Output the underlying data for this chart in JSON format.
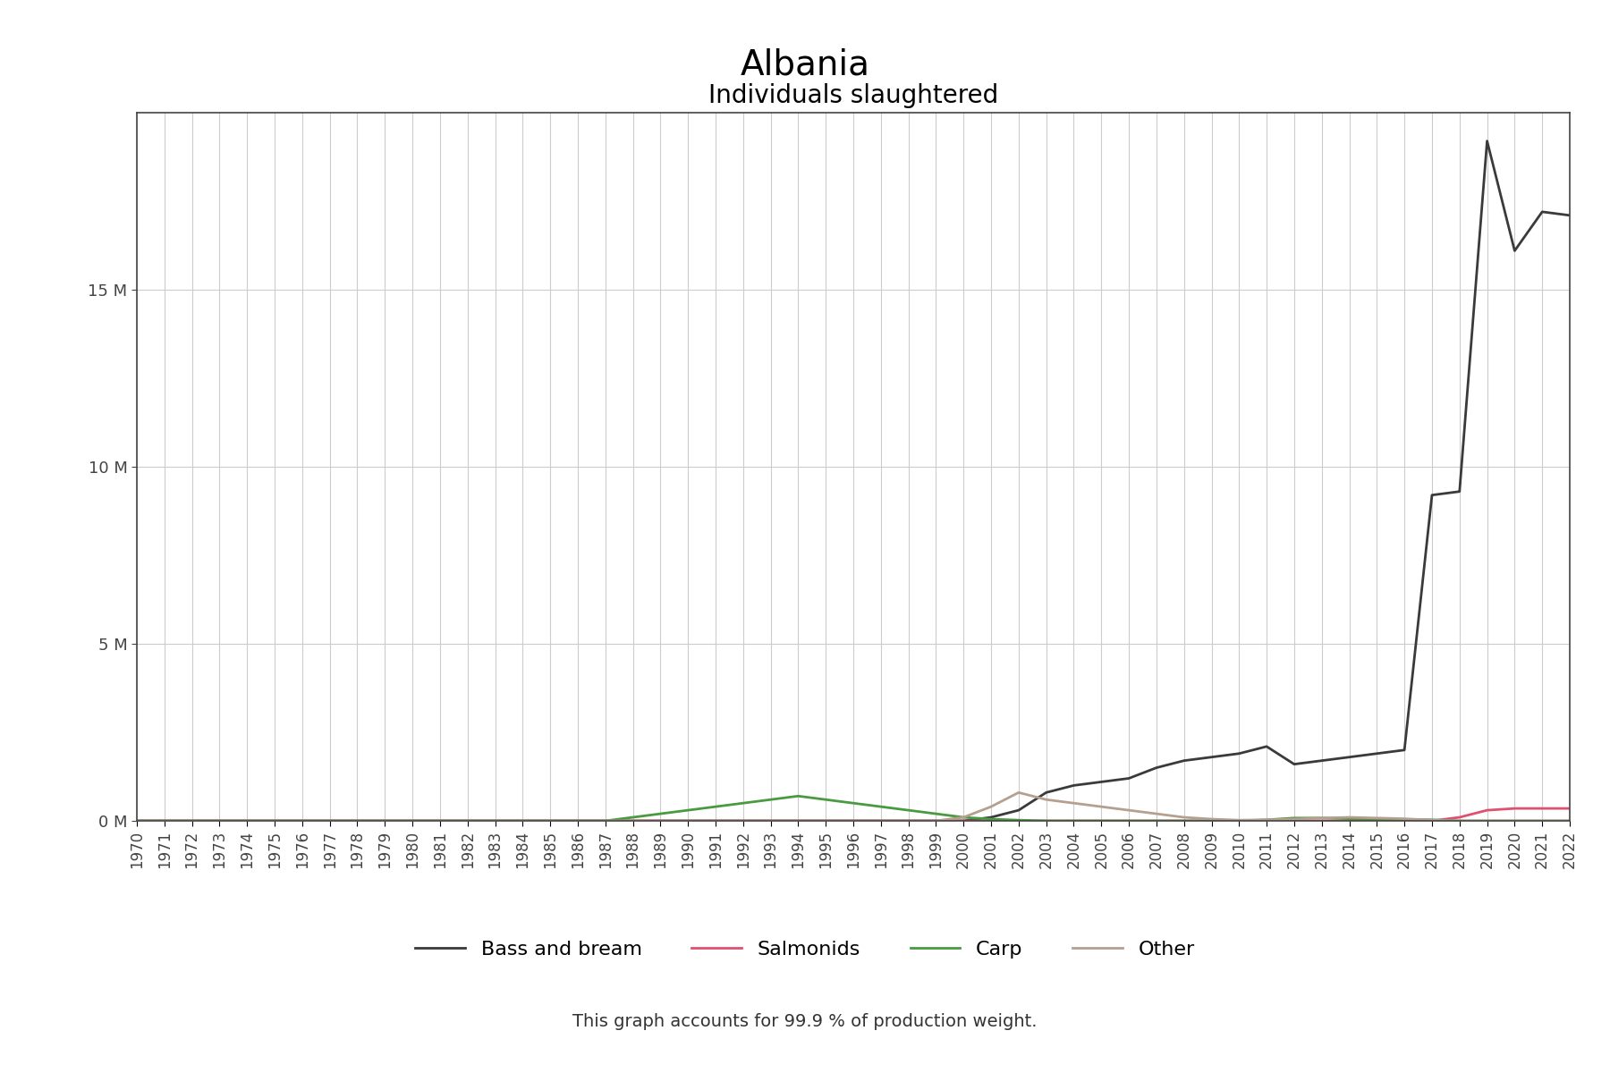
{
  "title": "Albania",
  "subtitle": "Individuals slaughtered",
  "footer": "This graph accounts for 99.9 % of production weight.",
  "years": [
    1970,
    1971,
    1972,
    1973,
    1974,
    1975,
    1976,
    1977,
    1978,
    1979,
    1980,
    1981,
    1982,
    1983,
    1984,
    1985,
    1986,
    1987,
    1988,
    1989,
    1990,
    1991,
    1992,
    1993,
    1994,
    1995,
    1996,
    1997,
    1998,
    1999,
    2000,
    2001,
    2002,
    2003,
    2004,
    2005,
    2006,
    2007,
    2008,
    2009,
    2010,
    2011,
    2012,
    2013,
    2014,
    2015,
    2016,
    2017,
    2018,
    2019,
    2020,
    2021,
    2022
  ],
  "bass_and_bream": [
    0,
    0,
    0,
    0,
    0,
    0,
    0,
    0,
    0,
    0,
    0,
    0,
    0,
    0,
    0,
    0,
    0,
    0,
    0,
    0,
    0,
    0,
    0,
    0,
    0,
    0,
    0,
    0,
    0,
    0,
    0,
    100000,
    300000,
    800000,
    1000000,
    1100000,
    1200000,
    1500000,
    1700000,
    1800000,
    1900000,
    2100000,
    1600000,
    1700000,
    1800000,
    1900000,
    2000000,
    9200000,
    9300000,
    19200000,
    16100000,
    17200000,
    17100000
  ],
  "salmonids": [
    0,
    0,
    0,
    0,
    0,
    0,
    0,
    0,
    0,
    0,
    0,
    0,
    0,
    0,
    0,
    0,
    0,
    0,
    0,
    0,
    0,
    0,
    0,
    0,
    0,
    0,
    0,
    0,
    0,
    0,
    0,
    0,
    0,
    0,
    0,
    0,
    0,
    0,
    0,
    0,
    0,
    0,
    0,
    0,
    0,
    0,
    0,
    0,
    100000,
    300000,
    350000,
    350000,
    350000
  ],
  "carp": [
    0,
    0,
    0,
    0,
    0,
    0,
    0,
    0,
    0,
    0,
    0,
    0,
    0,
    0,
    0,
    0,
    0,
    0,
    100000,
    200000,
    300000,
    400000,
    500000,
    600000,
    700000,
    600000,
    500000,
    400000,
    300000,
    200000,
    100000,
    50000,
    20000,
    0,
    0,
    0,
    0,
    0,
    0,
    0,
    0,
    30000,
    80000,
    80000,
    60000,
    50000,
    40000,
    30000,
    0,
    0,
    0,
    0,
    0
  ],
  "other": [
    0,
    0,
    0,
    0,
    0,
    0,
    0,
    0,
    0,
    0,
    0,
    0,
    0,
    0,
    0,
    0,
    0,
    0,
    0,
    0,
    0,
    0,
    0,
    0,
    0,
    0,
    0,
    0,
    0,
    0,
    100000,
    400000,
    800000,
    600000,
    500000,
    400000,
    300000,
    200000,
    100000,
    50000,
    20000,
    30000,
    50000,
    80000,
    100000,
    80000,
    60000,
    20000,
    0,
    0,
    0,
    0,
    0
  ],
  "bass_color": "#3a3a3a",
  "salmonids_color": "#e05070",
  "carp_color": "#4a9a40",
  "other_color": "#b5a090",
  "bg_color": "#ffffff",
  "plot_bg_color": "#ffffff",
  "grid_color": "#cccccc",
  "ylim": [
    0,
    20000000
  ],
  "yticks": [
    0,
    5000000,
    10000000,
    15000000
  ],
  "title_fontsize": 28,
  "subtitle_fontsize": 20,
  "legend_fontsize": 16,
  "footer_fontsize": 14,
  "tick_fontsize": 12
}
